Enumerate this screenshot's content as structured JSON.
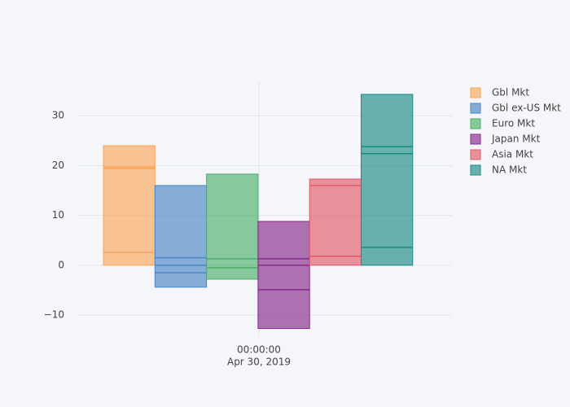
{
  "chart_data": {
    "type": "box",
    "x_tick_label": {
      "time": "00:00:00",
      "date": "Apr 30, 2019"
    },
    "ylim": [
      -14.4,
      36.9
    ],
    "yticks": [
      {
        "value": -10,
        "label": "−10"
      },
      0,
      10,
      20,
      30
    ],
    "grid": true,
    "legend": "right",
    "series": [
      {
        "name": "Gbl Mkt",
        "color": "#f9a65a",
        "values": [
          0,
          2.6,
          19.4,
          19.7,
          24.0
        ]
      },
      {
        "name": "Gbl ex-US Mkt",
        "color": "#4a86c5",
        "values": [
          -4.4,
          -1.5,
          0,
          1.5,
          16.0
        ]
      },
      {
        "name": "Euro Mkt",
        "color": "#4caf6a",
        "values": [
          -2.8,
          -0.5,
          1.3,
          18.3
        ]
      },
      {
        "name": "Japan Mkt",
        "color": "#862a8a",
        "values": [
          -12.7,
          -4.9,
          0,
          1.3,
          8.8
        ]
      },
      {
        "name": "Asia Mkt",
        "color": "#e05a6a",
        "values": [
          0,
          1.8,
          16.0,
          17.3
        ]
      },
      {
        "name": "NA Mkt",
        "color": "#1a8a85",
        "values": [
          0,
          3.6,
          22.4,
          23.8,
          34.3
        ]
      }
    ]
  }
}
